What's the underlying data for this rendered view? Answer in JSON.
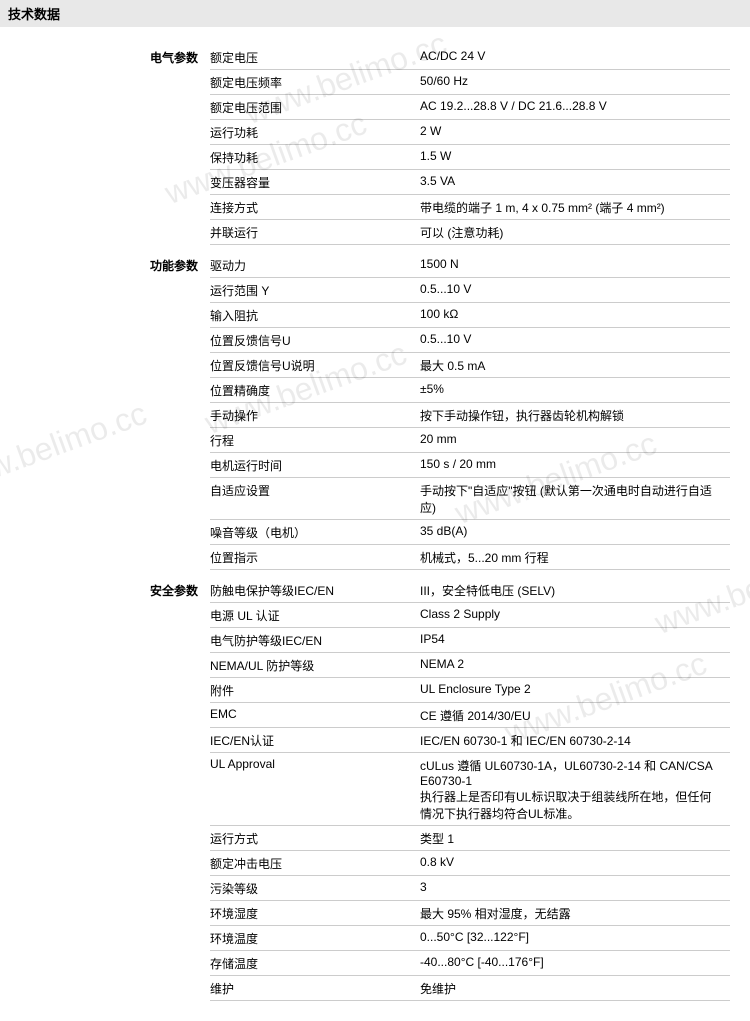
{
  "header": "技术数据",
  "watermark_text": "www.belimo.cc",
  "sections": [
    {
      "label": "电气参数",
      "rows": [
        {
          "param": "额定电压",
          "value": "AC/DC 24 V"
        },
        {
          "param": "额定电压频率",
          "value": "50/60 Hz"
        },
        {
          "param": "额定电压范围",
          "value": "AC 19.2...28.8 V / DC 21.6...28.8 V"
        },
        {
          "param": "运行功耗",
          "value": "2 W"
        },
        {
          "param": "保持功耗",
          "value": "1.5 W"
        },
        {
          "param": "变压器容量",
          "value": "3.5 VA"
        },
        {
          "param": "连接方式",
          "value": "带电缆的端子 1 m, 4 x 0.75 mm² (端子 4 mm²)"
        },
        {
          "param": "并联运行",
          "value": "可以 (注意功耗)"
        }
      ]
    },
    {
      "label": "功能参数",
      "rows": [
        {
          "param": "驱动力",
          "value": "1500 N"
        },
        {
          "param": "运行范围 Y",
          "value": "0.5...10 V"
        },
        {
          "param": "输入阻抗",
          "value": "100 kΩ"
        },
        {
          "param": "位置反馈信号U",
          "value": "0.5...10 V"
        },
        {
          "param": "位置反馈信号U说明",
          "value": "最大 0.5 mA"
        },
        {
          "param": "位置精确度",
          "value": "±5%"
        },
        {
          "param": "手动操作",
          "value": "按下手动操作钮，执行器齿轮机构解锁"
        },
        {
          "param": "行程",
          "value": "20 mm"
        },
        {
          "param": "电机运行时间",
          "value": "150 s / 20 mm"
        },
        {
          "param": "自适应设置",
          "value": "手动按下\"自适应\"按钮 (默认第一次通电时自动进行自适应)"
        },
        {
          "param": "噪音等级（电机）",
          "value": "35 dB(A)"
        },
        {
          "param": "位置指示",
          "value": "机械式，5...20 mm 行程"
        }
      ]
    },
    {
      "label": "安全参数",
      "rows": [
        {
          "param": "防触电保护等级IEC/EN",
          "value": "III，安全特低电压 (SELV)"
        },
        {
          "param": "电源 UL 认证",
          "value": "Class 2 Supply"
        },
        {
          "param": "电气防护等级IEC/EN",
          "value": "IP54"
        },
        {
          "param": "NEMA/UL 防护等级",
          "value": "NEMA 2"
        },
        {
          "param": "附件",
          "value": "UL Enclosure Type 2"
        },
        {
          "param": "EMC",
          "value": "CE 遵循 2014/30/EU"
        },
        {
          "param": "IEC/EN认证",
          "value": "IEC/EN 60730-1 和 IEC/EN 60730-2-14"
        },
        {
          "param": "UL Approval",
          "value": "cULus 遵循 UL60730-1A，UL60730-2-14 和 CAN/CSA E60730-1\n执行器上是否印有UL标识取决于组装线所在地，但任何情况下执行器均符合UL标准。"
        },
        {
          "param": "运行方式",
          "value": "类型 1"
        },
        {
          "param": "额定冲击电压",
          "value": "0.8 kV"
        },
        {
          "param": "污染等级",
          "value": "3"
        },
        {
          "param": "环境湿度",
          "value": "最大 95% 相对湿度，无结露"
        },
        {
          "param": "环境温度",
          "value": "0...50°C [32...122°F]"
        },
        {
          "param": "存储温度",
          "value": "-40...80°C [-40...176°F]"
        },
        {
          "param": "维护",
          "value": "免维护"
        }
      ]
    }
  ]
}
